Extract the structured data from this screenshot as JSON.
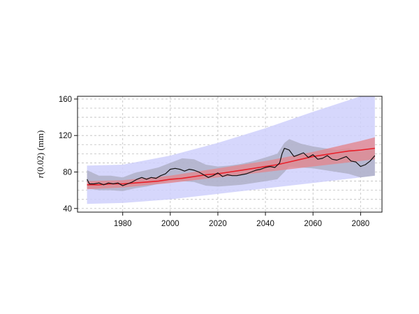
{
  "chart_data": {
    "type": "line",
    "title": "",
    "xlabel": "",
    "ylabel": "r(0.02) (mm)",
    "ylabel_italic": "r",
    "ylabel_rest": "(0.02) (mm)",
    "xlim": [
      1961,
      2089
    ],
    "ylim": [
      36,
      163
    ],
    "x_ticks": [
      1980,
      2000,
      2020,
      2040,
      2060,
      2080
    ],
    "y_ticks": [
      40,
      80,
      120,
      160
    ],
    "grid": true,
    "colors": {
      "outer_band": "#cfd0fb",
      "grey_band": "#9c9cab",
      "red_band": "#e2878f",
      "trend_line": "#e8202a",
      "observed_line": "#111111",
      "grid": "#bdbdbd"
    },
    "outer_band": [
      {
        "x": 1965,
        "lower": 45,
        "upper": 87
      },
      {
        "x": 1980,
        "lower": 46,
        "upper": 88
      },
      {
        "x": 2000,
        "lower": 50,
        "upper": 98
      },
      {
        "x": 2020,
        "lower": 56,
        "upper": 112
      },
      {
        "x": 2040,
        "lower": 62,
        "upper": 128
      },
      {
        "x": 2060,
        "lower": 68,
        "upper": 146
      },
      {
        "x": 2080,
        "lower": 74,
        "upper": 163
      },
      {
        "x": 2086,
        "lower": 76,
        "upper": 163
      }
    ],
    "red_band": [
      {
        "x": 1965,
        "lower": 61,
        "upper": 70
      },
      {
        "x": 1980,
        "lower": 63,
        "upper": 71
      },
      {
        "x": 2000,
        "lower": 68,
        "upper": 76
      },
      {
        "x": 2020,
        "lower": 74,
        "upper": 84
      },
      {
        "x": 2040,
        "lower": 80,
        "upper": 92
      },
      {
        "x": 2060,
        "lower": 86,
        "upper": 102
      },
      {
        "x": 2080,
        "lower": 92,
        "upper": 114
      },
      {
        "x": 2086,
        "lower": 94,
        "upper": 118
      }
    ],
    "series": [
      {
        "role": "trend",
        "x": [
          1965,
          1970,
          1975,
          1980,
          1985,
          1990,
          1995,
          2000,
          2005,
          2010,
          2015,
          2020,
          2025,
          2030,
          2035,
          2040,
          2045,
          2050,
          2055,
          2060,
          2065,
          2070,
          2075,
          2080,
          2086
        ],
        "values": [
          66,
          66,
          67,
          67,
          68,
          69,
          70,
          72,
          73,
          75,
          77,
          78,
          80,
          82,
          84,
          86,
          88,
          91,
          94,
          97,
          99,
          101,
          103,
          104,
          106
        ]
      },
      {
        "role": "observed",
        "x": [
          1965,
          1966,
          1968,
          1970,
          1972,
          1974,
          1976,
          1978,
          1980,
          1982,
          1984,
          1986,
          1988,
          1990,
          1992,
          1994,
          1996,
          1998,
          2000,
          2002,
          2004,
          2006,
          2008,
          2010,
          2012,
          2014,
          2016,
          2018,
          2020,
          2022,
          2024,
          2026,
          2028,
          2030,
          2032,
          2034,
          2036,
          2038,
          2040,
          2042,
          2044,
          2046,
          2047,
          2048,
          2050,
          2052,
          2054,
          2056,
          2058,
          2060,
          2062,
          2064,
          2066,
          2068,
          2070,
          2072,
          2074,
          2076,
          2078,
          2080,
          2082,
          2084,
          2086
        ],
        "values": [
          72,
          67,
          67,
          68,
          66,
          68,
          67,
          68,
          65,
          67,
          69,
          72,
          74,
          72,
          74,
          73,
          76,
          78,
          83,
          84,
          83,
          81,
          83,
          82,
          80,
          77,
          74,
          76,
          79,
          75,
          77,
          76,
          76,
          77,
          78,
          80,
          82,
          83,
          85,
          86,
          85,
          90,
          100,
          106,
          104,
          97,
          99,
          101,
          96,
          99,
          94,
          95,
          98,
          94,
          93,
          95,
          97,
          92,
          91,
          86,
          88,
          92,
          98
        ]
      }
    ],
    "grey_band": {
      "x": [
        1965,
        1970,
        1975,
        1980,
        1985,
        1990,
        1995,
        2000,
        2005,
        2010,
        2015,
        2020,
        2025,
        2030,
        2035,
        2040,
        2045,
        2048,
        2050,
        2055,
        2060,
        2065,
        2070,
        2075,
        2080,
        2086
      ],
      "lower": [
        62,
        60,
        60,
        59,
        62,
        64,
        67,
        70,
        70,
        69,
        65,
        64,
        65,
        66,
        68,
        70,
        72,
        80,
        86,
        85,
        84,
        82,
        80,
        78,
        74,
        76
      ],
      "upper": [
        82,
        76,
        76,
        74,
        79,
        82,
        85,
        90,
        95,
        94,
        88,
        86,
        87,
        89,
        92,
        96,
        100,
        112,
        116,
        111,
        108,
        106,
        104,
        106,
        102,
        106
      ]
    }
  }
}
